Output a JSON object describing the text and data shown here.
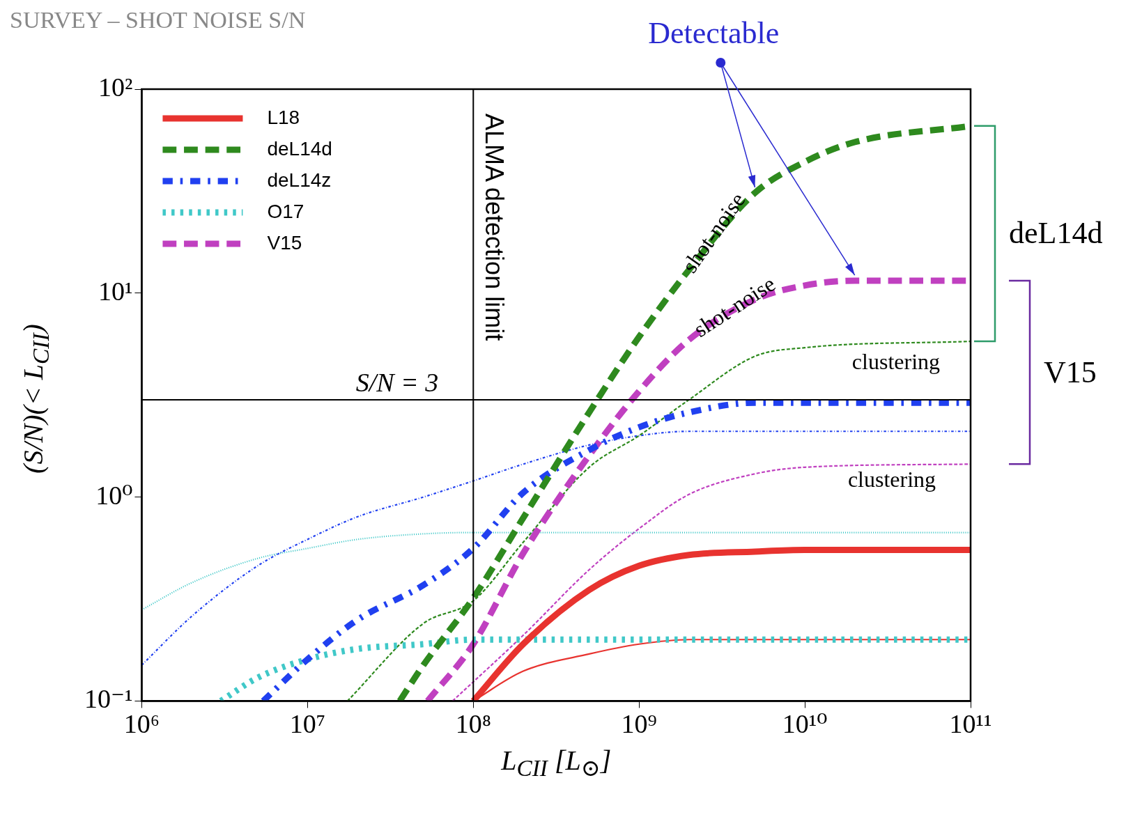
{
  "chart_data": {
    "type": "line",
    "title": "SURVEY – SHOT NOISE S/N",
    "xlabel": "L$_{CII}$ [L$_{⊙}$]",
    "ylabel": "(S/N)(< L$_{CII}$)",
    "log": "xy",
    "grid": false,
    "legend": "top left",
    "xlim": [
      1000000,
      100000000000
    ],
    "ylim": [
      0.1,
      100
    ],
    "xticks": [
      {
        "value": 1000000,
        "label": "10⁶"
      },
      {
        "value": 10000000,
        "label": "10⁷"
      },
      {
        "value": 100000000,
        "label": "10⁸"
      },
      {
        "value": 1000000000,
        "label": "10⁹"
      },
      {
        "value": 10000000000,
        "label": "10¹⁰"
      },
      {
        "value": 100000000000,
        "label": "10¹¹"
      }
    ],
    "yticks": [
      {
        "value": 0.1,
        "label": "10⁻¹"
      },
      {
        "value": 1,
        "label": "10⁰"
      },
      {
        "value": 10,
        "label": "10¹"
      },
      {
        "value": 100,
        "label": "10²"
      }
    ],
    "series": [
      {
        "name": "L18",
        "color": "#e8332f",
        "line_style": "solid",
        "x": [
          100000000,
          200000000,
          500000000,
          1000000000,
          2000000000,
          5000000000,
          10000000000,
          100000000000
        ],
        "values": [
          0.1,
          0.19,
          0.35,
          0.46,
          0.52,
          0.54,
          0.55,
          0.55
        ]
      },
      {
        "name": "deL14d",
        "color": "#2e8a1e",
        "line_style": "dashed",
        "x": [
          36000000,
          50000000,
          100000000,
          200000000,
          500000000,
          1000000000,
          2000000000,
          5000000000,
          10000000000,
          20000000000,
          100000000000
        ],
        "values": [
          0.1,
          0.15,
          0.32,
          0.79,
          2.6,
          6.1,
          13,
          31,
          44,
          55,
          66
        ]
      },
      {
        "name": "deL14z",
        "color": "#2040f0",
        "line_style": "dashdot",
        "x": [
          5400000,
          10000000,
          20000000,
          50000000,
          100000000,
          200000000,
          500000000,
          1000000000,
          2000000000,
          5000000000,
          10000000000,
          100000000000
        ],
        "values": [
          0.1,
          0.16,
          0.25,
          0.37,
          0.56,
          1.05,
          1.7,
          2.2,
          2.6,
          2.9,
          2.9,
          2.9
        ]
      },
      {
        "name": "O17",
        "color": "#40c8c8",
        "line_style": "dotted",
        "x": [
          3000000,
          5000000,
          10000000,
          20000000,
          50000000,
          100000000,
          100000000000
        ],
        "values": [
          0.1,
          0.13,
          0.16,
          0.18,
          0.19,
          0.2,
          0.2
        ]
      },
      {
        "name": "V15",
        "color": "#c040c0",
        "line_style": "dashed",
        "x": [
          53000000,
          100000000,
          200000000,
          500000000,
          1000000000,
          2000000000,
          5000000000,
          10000000000,
          20000000000,
          100000000000
        ],
        "values": [
          0.1,
          0.19,
          0.53,
          1.6,
          3.3,
          5.9,
          9.3,
          10.9,
          11.5,
          11.5
        ]
      },
      {
        "color": "#e8332f",
        "line_style": "solid",
        "x": [
          100000000,
          200000000,
          500000000,
          1000000000,
          2000000000,
          100000000000
        ],
        "values": [
          0.1,
          0.14,
          0.17,
          0.19,
          0.2,
          0.2
        ]
      },
      {
        "color": "#2e8a1e",
        "line_style": "dashed",
        "x": [
          17400000,
          50000000,
          100000000,
          200000000,
          500000000,
          1000000000,
          2000000000,
          5000000000,
          10000000000,
          100000000000
        ],
        "values": [
          0.1,
          0.24,
          0.31,
          0.6,
          1.4,
          2.0,
          3.0,
          4.9,
          5.4,
          5.8
        ]
      },
      {
        "color": "#2040f0",
        "line_style": "dashdot",
        "x": [
          1000000,
          2000000,
          5000000,
          10000000,
          20000000,
          50000000,
          100000000,
          200000000,
          500000000,
          1000000000,
          2000000000,
          100000000000
        ],
        "values": [
          0.15,
          0.26,
          0.46,
          0.62,
          0.8,
          1.0,
          1.2,
          1.45,
          1.8,
          2.0,
          2.1,
          2.1
        ]
      },
      {
        "color": "#40c8c8",
        "line_style": "dotted",
        "x": [
          1000000,
          2000000,
          5000000,
          10000000,
          20000000,
          50000000,
          100000000,
          100000000000
        ],
        "values": [
          0.28,
          0.38,
          0.5,
          0.56,
          0.62,
          0.66,
          0.67,
          0.67
        ]
      },
      {
        "color": "#c040c0",
        "line_style": "dashed",
        "x": [
          75000000,
          200000000,
          500000000,
          1000000000,
          2000000000,
          5000000000,
          10000000000,
          100000000000
        ],
        "values": [
          0.1,
          0.21,
          0.44,
          0.7,
          1.03,
          1.3,
          1.4,
          1.45
        ]
      }
    ],
    "ref_lines": [
      {
        "axis": "x",
        "value": 100000000,
        "label": "ALMA detection limit"
      },
      {
        "axis": "y",
        "value": 3,
        "label": "S/N = 3"
      }
    ],
    "annotations": [
      "Detectable",
      "shot-noise",
      "shot-noise",
      "clustering",
      "clustering",
      "deL14d",
      "V15"
    ]
  }
}
